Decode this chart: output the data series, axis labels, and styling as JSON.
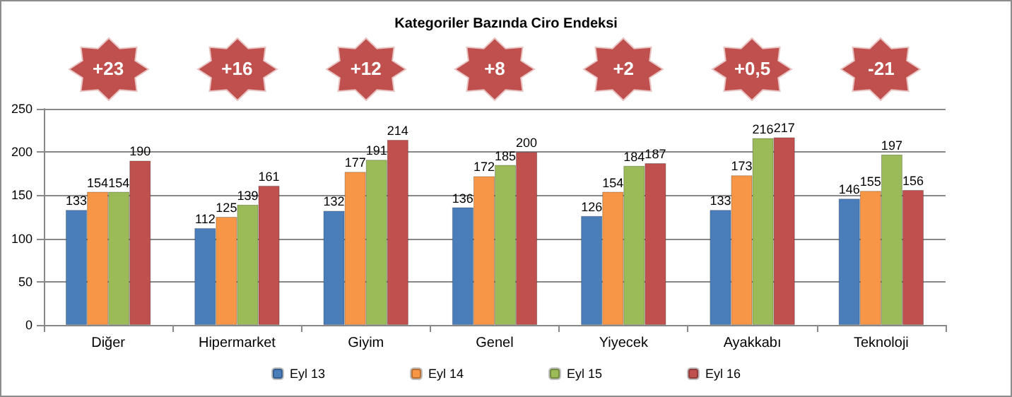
{
  "chart_data": {
    "type": "bar",
    "title": "Kategoriler Bazında Ciro Endeksi",
    "categories": [
      "Diğer",
      "Hipermarket",
      "Giyim",
      "Genel",
      "Yiyecek",
      "Ayakkabı",
      "Teknoloji"
    ],
    "series": [
      {
        "name": "Eyl 13",
        "color": "#4a7ebb",
        "values": [
          133,
          112,
          132,
          136,
          126,
          133,
          146
        ]
      },
      {
        "name": "Eyl 14",
        "color": "#f79646",
        "values": [
          154,
          125,
          177,
          172,
          154,
          173,
          155
        ]
      },
      {
        "name": "Eyl 15",
        "color": "#9bbb59",
        "values": [
          154,
          139,
          191,
          185,
          184,
          216,
          197
        ]
      },
      {
        "name": "Eyl 16",
        "color": "#c0504d",
        "values": [
          190,
          161,
          214,
          200,
          187,
          217,
          156
        ]
      }
    ],
    "ylim": [
      0,
      250
    ],
    "yticks": [
      0,
      50,
      100,
      150,
      200,
      250
    ],
    "grid": "y",
    "legend": "bottom",
    "data_labels": true,
    "annotations": [
      "+23",
      "+16",
      "+12",
      "+8",
      "+2",
      "+0,5",
      "-21"
    ]
  }
}
